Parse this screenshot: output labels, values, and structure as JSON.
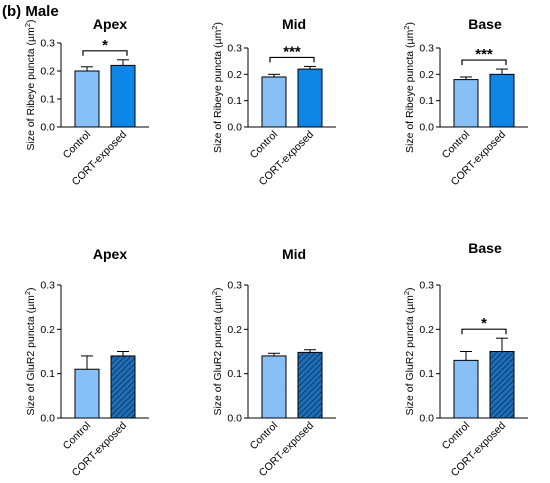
{
  "figure": {
    "panel_label": "(b) Male"
  },
  "colors": {
    "control": "#86c0f7",
    "cort": "#0d86e6",
    "stroke": "#000000"
  },
  "chart_data": [
    {
      "type": "bar",
      "title": "Apex",
      "categories": [
        "Control",
        "CORT-exposed"
      ],
      "ylabel": "Size of Ribeye puncta (µm²)",
      "ylabel_main": "Size of Ribeye puncta (µm",
      "ylabel_sup": "2",
      "ylabel_end": ")",
      "ylim": [
        0,
        0.3
      ],
      "yticks": [
        "0.0",
        "0.1",
        "0.2",
        "0.3"
      ],
      "values": [
        0.2,
        0.22
      ],
      "errors": [
        0.015,
        0.02
      ],
      "significance": "*",
      "pattern": "solid",
      "grid": false
    },
    {
      "type": "bar",
      "title": "Mid",
      "categories": [
        "Control",
        "CORT-exposed"
      ],
      "ylabel": "Size of Ribeye puncta (µm²)",
      "ylabel_main": "Size of Ribeye puncta (µm",
      "ylabel_sup": "2",
      "ylabel_end": ")",
      "ylim": [
        0,
        0.3
      ],
      "yticks": [
        "0.0",
        "0.1",
        "0.2",
        "0.3"
      ],
      "values": [
        0.19,
        0.22
      ],
      "errors": [
        0.01,
        0.01
      ],
      "significance": "***",
      "pattern": "solid",
      "grid": false
    },
    {
      "type": "bar",
      "title": "Base",
      "categories": [
        "Control",
        "CORT-exposed"
      ],
      "ylabel": "Size of Ribeye puncta (µm²)",
      "ylabel_main": "Size of Ribeye puncta (µm",
      "ylabel_sup": "2",
      "ylabel_end": ")",
      "ylim": [
        0,
        0.3
      ],
      "yticks": [
        "0.0",
        "0.1",
        "0.2",
        "0.3"
      ],
      "values": [
        0.18,
        0.2
      ],
      "errors": [
        0.01,
        0.02
      ],
      "significance": "***",
      "pattern": "solid",
      "grid": false
    },
    {
      "type": "bar",
      "title": "Apex",
      "categories": [
        "Control",
        "CORT-exposed"
      ],
      "ylabel": "Size of GluR2 puncta (µm²)",
      "ylabel_main": "Size of GluR2 puncta (µm",
      "ylabel_sup": "2",
      "ylabel_end": ")",
      "ylim": [
        0,
        0.3
      ],
      "yticks": [
        "0.0",
        "0.1",
        "0.2",
        "0.3"
      ],
      "values": [
        0.11,
        0.14
      ],
      "errors": [
        0.03,
        0.01
      ],
      "significance": "",
      "pattern": "hatched",
      "grid": false
    },
    {
      "type": "bar",
      "title": "Mid",
      "categories": [
        "Control",
        "CORT-exposed"
      ],
      "ylabel": "Size of GluR2 puncta (µm²)",
      "ylabel_main": "Size of GluR2 puncta (µm",
      "ylabel_sup": "2",
      "ylabel_end": ")",
      "ylim": [
        0,
        0.3
      ],
      "yticks": [
        "0.0",
        "0.1",
        "0.2",
        "0.3"
      ],
      "values": [
        0.14,
        0.148
      ],
      "errors": [
        0.006,
        0.006
      ],
      "significance": "",
      "pattern": "hatched",
      "grid": false
    },
    {
      "type": "bar",
      "title": "Base",
      "categories": [
        "Control",
        "CORT-exposed"
      ],
      "ylabel": "Size of GluR2 puncta (µm²)",
      "ylabel_main": "Size of GluR2 puncta (µm",
      "ylabel_sup": "2",
      "ylabel_end": ")",
      "ylim": [
        0,
        0.3
      ],
      "yticks": [
        "0.0",
        "0.1",
        "0.2",
        "0.3"
      ],
      "values": [
        0.13,
        0.15
      ],
      "errors": [
        0.02,
        0.03
      ],
      "significance": "*",
      "pattern": "hatched",
      "grid": false
    }
  ]
}
